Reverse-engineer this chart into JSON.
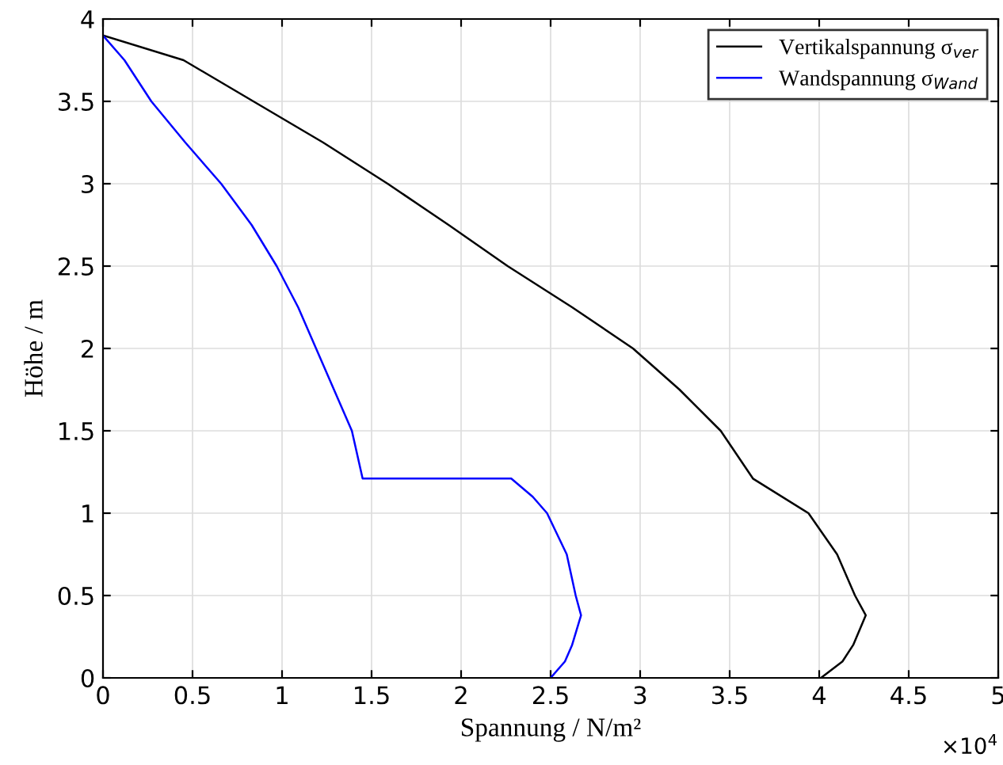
{
  "chart_data": {
    "type": "line",
    "xlabel": "Spannung / N/m²",
    "ylabel": "Höhe / m",
    "xlim": [
      0,
      5
    ],
    "xticks": [
      0,
      0.5,
      1,
      1.5,
      2,
      2.5,
      3,
      3.5,
      4,
      4.5,
      5
    ],
    "ylim": [
      0,
      4
    ],
    "yticks": [
      0,
      0.5,
      1,
      1.5,
      2,
      2.5,
      3,
      3.5,
      4
    ],
    "grid": true,
    "legend": "top right",
    "marker": "none",
    "line_style": "solid",
    "annotations": [
      "×10$^{4}$"
    ],
    "series": [
      {
        "name": "Vertikalspannung σ$_{ver}$",
        "color": "#000000",
        "x": [
          0,
          0.45,
          0.84,
          1.23,
          1.59,
          1.93,
          2.26,
          2.62,
          2.96,
          3.22,
          3.45,
          3.63,
          3.94,
          4.1,
          4.2,
          4.26,
          4.19,
          4.13,
          4.01
        ],
        "values": [
          3.9,
          3.75,
          3.5,
          3.25,
          3.0,
          2.75,
          2.5,
          2.25,
          2.0,
          1.75,
          1.5,
          1.21,
          1.0,
          0.75,
          0.5,
          0.38,
          0.2,
          0.1,
          0
        ]
      },
      {
        "name": "Wandspannung σ$_{Wand}$",
        "color": "#0000ff",
        "x": [
          0,
          0.12,
          0.27,
          0.46,
          0.66,
          0.83,
          0.97,
          1.09,
          1.19,
          1.29,
          1.39,
          1.45,
          2.28,
          2.4,
          2.48,
          2.59,
          2.64,
          2.67,
          2.62,
          2.58,
          2.5
        ],
        "values": [
          3.9,
          3.75,
          3.5,
          3.25,
          3.0,
          2.75,
          2.5,
          2.25,
          2.0,
          1.75,
          1.5,
          1.21,
          1.21,
          1.1,
          1.0,
          0.75,
          0.5,
          0.38,
          0.2,
          0.1,
          0
        ]
      }
    ]
  }
}
